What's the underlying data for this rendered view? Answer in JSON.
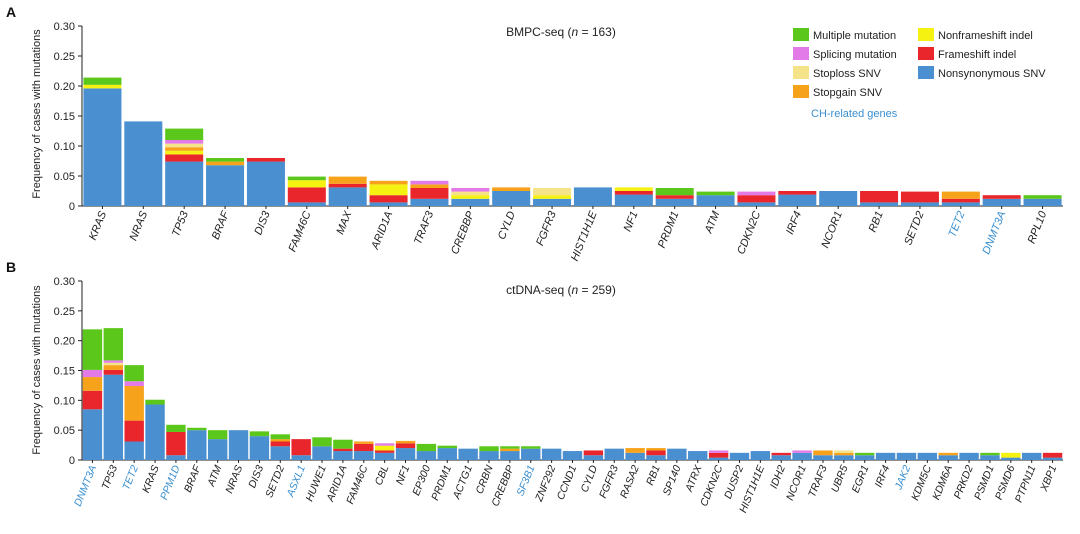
{
  "colors": {
    "Multiple mutation": "#5bc71a",
    "Splicing mutation": "#e27be8",
    "Stoploss SNV": "#f5e38a",
    "Stopgain SNV": "#f7a21b",
    "Nonframeshift indel": "#f5f211",
    "Frameshift indel": "#e8262c",
    "Nonsynonymous SNV": "#4a8fcf",
    "ch_gene_text": "#3a8fd0",
    "axis": "#222222"
  },
  "legend": {
    "col1": [
      "Multiple mutation",
      "Splicing mutation",
      "Stoploss SNV",
      "Stopgain SNV"
    ],
    "col2": [
      "Nonframeshift indel",
      "Frameshift indel",
      "Nonsynonymous SNV"
    ],
    "ch_label": "CH-related genes"
  },
  "chart_data": [
    {
      "panel_label": "A",
      "type": "bar",
      "stacked": true,
      "title_prefix": "BMPC-seq (",
      "title_n": "n",
      "title_suffix": " = 163)",
      "ylabel": "Frequency of cases with mutations",
      "ylim": [
        0,
        0.3
      ],
      "yticks": [
        "0",
        "0.05",
        "0.10",
        "0.15",
        "0.20",
        "0.25",
        "0.30"
      ],
      "categories": [
        "KRAS",
        "NRAS",
        "TP53",
        "BRAF",
        "DIS3",
        "FAM46C",
        "MAX",
        "ARID1A",
        "TRAF3",
        "CREBBP",
        "CYLD",
        "FGFR3",
        "HIST1H1E",
        "NF1",
        "PRDM1",
        "ATM",
        "CDKN2C",
        "IRF4",
        "NCOR1",
        "RB1",
        "SETD2",
        "TET2",
        "DNMT3A",
        "RPL10"
      ],
      "ch_genes": [
        "TET2",
        "DNMT3A"
      ],
      "series": [
        {
          "name": "Nonsynonymous SNV",
          "values": [
            0.196,
            0.141,
            0.074,
            0.068,
            0.074,
            0.006,
            0.031,
            0.006,
            0.012,
            0.012,
            0.025,
            0.012,
            0.031,
            0.019,
            0.012,
            0.018,
            0.006,
            0.019,
            0.025,
            0.006,
            0.006,
            0.006,
            0.012,
            0.012
          ]
        },
        {
          "name": "Frameshift indel",
          "values": [
            0,
            0,
            0.012,
            0,
            0.006,
            0.025,
            0.006,
            0.012,
            0.018,
            0,
            0,
            0,
            0,
            0.006,
            0.006,
            0,
            0.012,
            0.006,
            0,
            0.019,
            0.018,
            0.006,
            0.006,
            0
          ]
        },
        {
          "name": "Nonframeshift indel",
          "values": [
            0.006,
            0,
            0.006,
            0,
            0,
            0.012,
            0,
            0.018,
            0,
            0.006,
            0,
            0.006,
            0,
            0.006,
            0,
            0,
            0,
            0,
            0,
            0,
            0,
            0,
            0,
            0
          ]
        },
        {
          "name": "Stopgain SNV",
          "values": [
            0,
            0,
            0.006,
            0.006,
            0,
            0,
            0.012,
            0.006,
            0.006,
            0,
            0.006,
            0,
            0,
            0,
            0,
            0,
            0,
            0,
            0,
            0,
            0,
            0.012,
            0,
            0
          ]
        },
        {
          "name": "Stoploss SNV",
          "values": [
            0,
            0,
            0.006,
            0,
            0,
            0,
            0,
            0,
            0,
            0.006,
            0,
            0.012,
            0,
            0,
            0,
            0,
            0,
            0,
            0,
            0,
            0,
            0,
            0,
            0
          ]
        },
        {
          "name": "Splicing mutation",
          "values": [
            0,
            0,
            0.006,
            0,
            0,
            0,
            0,
            0,
            0.006,
            0.006,
            0,
            0,
            0,
            0,
            0,
            0,
            0.006,
            0,
            0,
            0,
            0,
            0,
            0,
            0
          ]
        },
        {
          "name": "Multiple mutation",
          "values": [
            0.012,
            0,
            0.019,
            0.006,
            0,
            0.006,
            0,
            0,
            0,
            0,
            0,
            0,
            0,
            0,
            0.012,
            0.006,
            0,
            0,
            0,
            0,
            0,
            0,
            0,
            0.006
          ]
        }
      ]
    },
    {
      "panel_label": "B",
      "type": "bar",
      "stacked": true,
      "title_prefix": "ctDNA-seq (",
      "title_n": "n",
      "title_suffix": " = 259)",
      "ylabel": "Frequency of cases with mutations",
      "ylim": [
        0,
        0.3
      ],
      "yticks": [
        "0",
        "0.05",
        "0.10",
        "0.15",
        "0.20",
        "0.25",
        "0.30"
      ],
      "categories": [
        "DNMT3A",
        "TP53",
        "TET2",
        "KRAS",
        "PPM1D",
        "BRAF",
        "ATM",
        "NRAS",
        "DIS3",
        "SETD2",
        "ASXL1",
        "HUWE1",
        "ARID1A",
        "FAM46C",
        "CBL",
        "NF1",
        "EP300",
        "PRDM1",
        "ACTG1",
        "CRBN",
        "CREBBP",
        "SF3B1",
        "ZNF292",
        "CCND1",
        "CYLD",
        "FGFR3",
        "RASA2",
        "RB1",
        "SP140",
        "ATRX",
        "CDKN2C",
        "DUSP2",
        "HIST1H1E",
        "IDH2",
        "NCOR1",
        "TRAF3",
        "UBR5",
        "EGR1",
        "IRF4",
        "JAK2",
        "KDM5C",
        "KDM6A",
        "PRKD2",
        "PSMD1",
        "PSMD6",
        "PTPN11",
        "XBP1"
      ],
      "ch_genes": [
        "DNMT3A",
        "TET2",
        "PPM1D",
        "ASXL1",
        "SF3B1",
        "JAK2"
      ],
      "series": [
        {
          "name": "Nonsynonymous SNV",
          "values": [
            0.085,
            0.143,
            0.031,
            0.093,
            0.008,
            0.05,
            0.035,
            0.05,
            0.04,
            0.023,
            0.008,
            0.023,
            0.015,
            0.015,
            0.012,
            0.02,
            0.015,
            0.02,
            0.019,
            0.015,
            0.015,
            0.019,
            0.019,
            0.015,
            0.008,
            0.019,
            0.012,
            0.008,
            0.019,
            0.015,
            0.004,
            0.012,
            0.015,
            0.008,
            0.012,
            0.008,
            0.008,
            0.008,
            0.012,
            0.012,
            0.012,
            0.008,
            0.012,
            0.008,
            0.004,
            0.012,
            0.004
          ]
        },
        {
          "name": "Frameshift indel",
          "values": [
            0.031,
            0.008,
            0.035,
            0,
            0.039,
            0,
            0,
            0,
            0,
            0.008,
            0.027,
            0,
            0.004,
            0.012,
            0.004,
            0.008,
            0,
            0,
            0,
            0,
            0,
            0,
            0,
            0,
            0.008,
            0,
            0,
            0.008,
            0,
            0,
            0.008,
            0,
            0,
            0.004,
            0,
            0,
            0,
            0,
            0,
            0,
            0,
            0,
            0,
            0,
            0,
            0,
            0.008
          ]
        },
        {
          "name": "Nonframeshift indel",
          "values": [
            0,
            0,
            0,
            0,
            0,
            0,
            0,
            0,
            0,
            0,
            0,
            0,
            0,
            0,
            0.008,
            0,
            0,
            0,
            0,
            0,
            0,
            0,
            0,
            0,
            0,
            0,
            0,
            0,
            0,
            0,
            0,
            0,
            0,
            0,
            0,
            0,
            0,
            0,
            0,
            0,
            0,
            0,
            0,
            0,
            0.008,
            0,
            0
          ]
        },
        {
          "name": "Stopgain SNV",
          "values": [
            0.023,
            0.008,
            0.058,
            0,
            0,
            0,
            0,
            0,
            0,
            0.004,
            0,
            0,
            0,
            0.004,
            0,
            0.004,
            0,
            0,
            0,
            0,
            0.004,
            0,
            0,
            0,
            0,
            0,
            0.008,
            0.004,
            0,
            0,
            0,
            0,
            0,
            0,
            0,
            0.008,
            0.004,
            0,
            0,
            0,
            0,
            0.004,
            0,
            0,
            0,
            0,
            0
          ]
        },
        {
          "name": "Stoploss SNV",
          "values": [
            0,
            0.004,
            0,
            0,
            0,
            0,
            0,
            0,
            0,
            0,
            0,
            0,
            0,
            0,
            0,
            0,
            0,
            0,
            0,
            0,
            0,
            0,
            0,
            0,
            0,
            0,
            0,
            0,
            0,
            0,
            0,
            0,
            0,
            0,
            0,
            0,
            0.004,
            0,
            0,
            0,
            0,
            0,
            0,
            0,
            0,
            0,
            0
          ]
        },
        {
          "name": "Splicing mutation",
          "values": [
            0.012,
            0.004,
            0.008,
            0,
            0,
            0,
            0,
            0,
            0,
            0,
            0,
            0,
            0,
            0,
            0.004,
            0,
            0,
            0,
            0,
            0,
            0,
            0,
            0,
            0,
            0,
            0,
            0,
            0,
            0,
            0,
            0.004,
            0,
            0,
            0,
            0.004,
            0,
            0,
            0,
            0,
            0,
            0,
            0,
            0,
            0,
            0,
            0,
            0
          ]
        },
        {
          "name": "Multiple mutation",
          "values": [
            0.068,
            0.054,
            0.027,
            0.008,
            0.012,
            0.004,
            0.015,
            0,
            0.008,
            0.008,
            0,
            0.015,
            0.015,
            0,
            0,
            0,
            0.012,
            0.004,
            0,
            0.008,
            0.004,
            0.004,
            0,
            0,
            0,
            0,
            0,
            0,
            0,
            0,
            0,
            0,
            0,
            0,
            0,
            0,
            0,
            0.004,
            0,
            0,
            0,
            0,
            0,
            0.004,
            0,
            0,
            0
          ]
        }
      ]
    }
  ]
}
